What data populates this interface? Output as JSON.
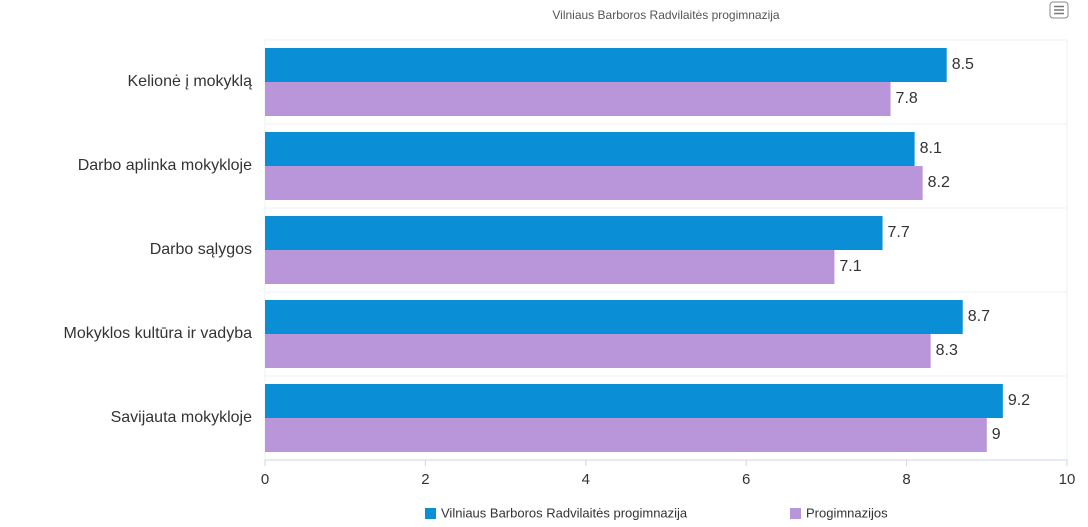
{
  "chart_data": {
    "type": "barh",
    "title": "Vilniaus Barboros Radvilaitės progimnazija",
    "categories": [
      "Kelionė į mokyklą",
      "Darbo aplinka mokykloje",
      "Darbo sąlygos",
      "Mokyklos kultūra ir vadyba",
      "Savijauta mokykloje"
    ],
    "series": [
      {
        "name": "Vilniaus Barboros Radvilaitės progimnazija",
        "color": "#0a8fd6",
        "values": [
          8.5,
          8.1,
          7.7,
          8.7,
          9.2
        ]
      },
      {
        "name": "Progimnazijos",
        "color": "#b996d9",
        "values": [
          7.8,
          8.2,
          7.1,
          8.3,
          9
        ]
      }
    ],
    "xlim": [
      0,
      10
    ],
    "xticks": [
      0,
      2,
      4,
      6,
      8,
      10
    ],
    "legend": "bottom"
  }
}
